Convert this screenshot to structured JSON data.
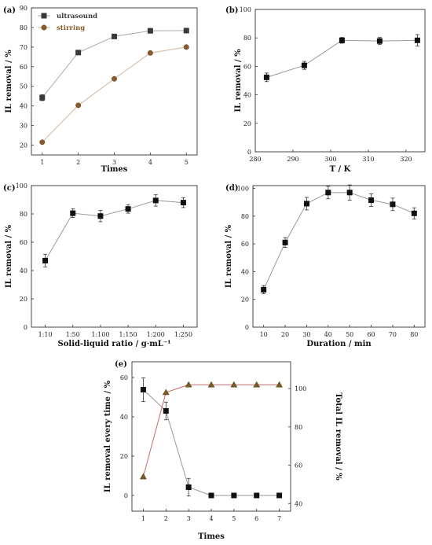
{
  "chart_data": [
    {
      "panel": "(a)",
      "type": "line",
      "xlabel": "Times",
      "ylabel": "IL removal / %",
      "x": [
        1,
        2,
        3,
        4,
        5
      ],
      "xlim": [
        0.7,
        5.3
      ],
      "ylim": [
        15,
        90
      ],
      "xticks": [
        1,
        2,
        3,
        4,
        5
      ],
      "yticks": [
        20,
        30,
        40,
        50,
        60,
        70,
        80,
        90
      ],
      "legend": "top-left",
      "series": [
        {
          "name": "ultrasound",
          "marker": "square",
          "color": "#3a3a3a",
          "line_color": "#aaaaaa",
          "values": [
            44.2,
            67.2,
            75.4,
            78.3,
            78.4
          ],
          "errors": [
            1.5,
            1.0,
            1.0,
            1.2,
            0.5
          ]
        },
        {
          "name": "stirring",
          "marker": "circle",
          "color": "#8b5a2b",
          "line_color": "#d0b4a0",
          "values": [
            21.5,
            40.3,
            53.8,
            67.0,
            70.0
          ],
          "errors": [
            0,
            0,
            0,
            0,
            0
          ]
        }
      ]
    },
    {
      "panel": "(b)",
      "type": "line",
      "xlabel": "T / K",
      "ylabel": "IL removal / %",
      "x": [
        283,
        293,
        303,
        313,
        323
      ],
      "xlim": [
        280,
        325
      ],
      "ylim": [
        0,
        100
      ],
      "xticks": [
        280,
        290,
        300,
        310,
        320
      ],
      "yticks": [
        0,
        20,
        40,
        60,
        80,
        100
      ],
      "series": [
        {
          "name": "",
          "marker": "square",
          "color": "#111111",
          "line_color": "#999999",
          "values": [
            52.3,
            60.7,
            78.3,
            77.8,
            78.3
          ],
          "errors": [
            3.0,
            2.8,
            2.0,
            2.5,
            4.0
          ]
        }
      ]
    },
    {
      "panel": "(c)",
      "type": "line",
      "xlabel": "Solid-liquid ratio / g·mL⁻¹",
      "ylabel": "IL removal / %",
      "categories": [
        "1:10",
        "1:50",
        "1:100",
        "1:150",
        "1:200",
        "1:250"
      ],
      "ylim": [
        0,
        100
      ],
      "yticks": [
        0,
        20,
        40,
        60,
        80,
        100
      ],
      "series": [
        {
          "name": "",
          "marker": "square",
          "color": "#111111",
          "line_color": "#999999",
          "values": [
            47.0,
            80.5,
            78.5,
            83.5,
            89.5,
            88.0
          ],
          "errors": [
            4.5,
            3.0,
            4.0,
            3.0,
            4.0,
            3.5
          ]
        }
      ]
    },
    {
      "panel": "(d)",
      "type": "line",
      "xlabel": "Duration / min",
      "ylabel": "IL removal / %",
      "x": [
        10,
        20,
        30,
        40,
        50,
        60,
        70,
        80
      ],
      "xlim": [
        5,
        85
      ],
      "ylim": [
        0,
        102
      ],
      "xticks": [
        10,
        20,
        30,
        40,
        50,
        60,
        70,
        80
      ],
      "yticks": [
        0,
        20,
        40,
        60,
        80,
        100
      ],
      "series": [
        {
          "name": "",
          "marker": "square",
          "color": "#111111",
          "line_color": "#999999",
          "values": [
            27.0,
            61.0,
            89.0,
            97.0,
            97.0,
            91.5,
            88.5,
            82.0
          ],
          "errors": [
            3.0,
            3.5,
            4.5,
            4.5,
            5.5,
            4.5,
            4.5,
            4.0
          ]
        }
      ]
    },
    {
      "panel": "(e)",
      "type": "line",
      "xlabel": "Times",
      "ylabel": "IL removal every time / %",
      "ylabel_right": "Total IL removal / %",
      "x": [
        1,
        2,
        3,
        4,
        5,
        6,
        7
      ],
      "xlim": [
        0.5,
        7.5
      ],
      "ylim": [
        -8,
        68
      ],
      "ylim_right": [
        36,
        114
      ],
      "xticks": [
        1,
        2,
        3,
        4,
        5,
        6,
        7
      ],
      "yticks": [
        0,
        20,
        40,
        60
      ],
      "yticks_right": [
        40,
        60,
        80,
        100
      ],
      "series": [
        {
          "name": "",
          "axis": "left",
          "marker": "square",
          "color": "#111111",
          "line_color": "#999999",
          "values": [
            53.8,
            43.0,
            4.2,
            0,
            0,
            0,
            0
          ],
          "errors": [
            6.0,
            4.5,
            4.5,
            0,
            0,
            0,
            0
          ]
        },
        {
          "name": "",
          "axis": "right",
          "marker": "triangle",
          "color": "#7a5c20",
          "line_color": "#c46a6a",
          "values": [
            54.0,
            98.0,
            102.0,
            102.0,
            102.0,
            102.0,
            102.0
          ],
          "errors": [
            0,
            0,
            0,
            0,
            0,
            0,
            0
          ]
        }
      ]
    }
  ]
}
